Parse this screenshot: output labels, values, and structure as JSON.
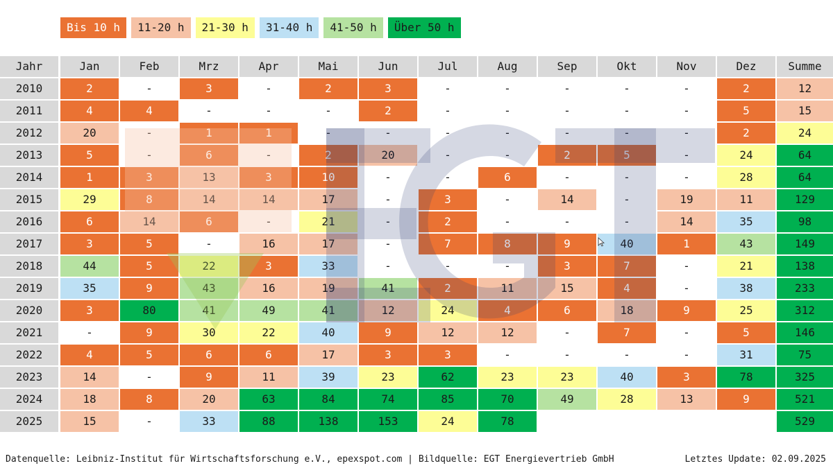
{
  "legend": [
    {
      "label": "Bis 10 h",
      "color": "#ea7233",
      "text_color": "#ffffff"
    },
    {
      "label": "11-20 h",
      "color": "#f6c2a6",
      "text_color": "#1a1a1a"
    },
    {
      "label": "21-30 h",
      "color": "#fdfd96",
      "text_color": "#1a1a1a"
    },
    {
      "label": "31-40 h",
      "color": "#bde0f4",
      "text_color": "#1a1a1a"
    },
    {
      "label": "41-50 h",
      "color": "#b6e2a1",
      "text_color": "#1a1a1a"
    },
    {
      "label": "Über 50 h",
      "color": "#00b050",
      "text_color": "#1a1a1a"
    }
  ],
  "chart_data": {
    "type": "table",
    "header": [
      "Jahr",
      "Jan",
      "Feb",
      "Mrz",
      "Apr",
      "Mai",
      "Jun",
      "Jul",
      "Aug",
      "Sep",
      "Okt",
      "Nov",
      "Dez",
      "Summe"
    ],
    "rows": [
      {
        "year": "2010",
        "values": [
          "2",
          "-",
          "3",
          "-",
          "2",
          "3",
          "-",
          "-",
          "-",
          "-",
          "-",
          "2",
          "12"
        ]
      },
      {
        "year": "2011",
        "values": [
          "4",
          "4",
          "-",
          "-",
          "-",
          "2",
          "-",
          "-",
          "-",
          "-",
          "-",
          "5",
          "15"
        ]
      },
      {
        "year": "2012",
        "values": [
          "20",
          "-",
          "1",
          "1",
          "-",
          "-",
          "-",
          "-",
          "-",
          "-",
          "-",
          "2",
          "24"
        ]
      },
      {
        "year": "2013",
        "values": [
          "5",
          "-",
          "6",
          "-",
          "2",
          "20",
          "-",
          "-",
          "2",
          "5",
          "-",
          "24",
          "64"
        ]
      },
      {
        "year": "2014",
        "values": [
          "1",
          "3",
          "13",
          "3",
          "10",
          "-",
          "-",
          "6",
          "-",
          "-",
          "-",
          "28",
          "64"
        ]
      },
      {
        "year": "2015",
        "values": [
          "29",
          "8",
          "14",
          "14",
          "17",
          "-",
          "3",
          "-",
          "14",
          "-",
          "19",
          "11",
          "129"
        ]
      },
      {
        "year": "2016",
        "values": [
          "6",
          "14",
          "6",
          "-",
          "21",
          "-",
          "2",
          "-",
          "-",
          "-",
          "14",
          "35",
          "98"
        ]
      },
      {
        "year": "2017",
        "values": [
          "3",
          "5",
          "-",
          "16",
          "17",
          "-",
          "7",
          "8",
          "9",
          "40",
          "1",
          "43",
          "149"
        ]
      },
      {
        "year": "2018",
        "values": [
          "44",
          "5",
          "22",
          "3",
          "33",
          "-",
          "-",
          "-",
          "3",
          "7",
          "-",
          "21",
          "138"
        ]
      },
      {
        "year": "2019",
        "values": [
          "35",
          "9",
          "43",
          "16",
          "19",
          "41",
          "2",
          "11",
          "15",
          "4",
          "-",
          "38",
          "233"
        ]
      },
      {
        "year": "2020",
        "values": [
          "3",
          "80",
          "41",
          "49",
          "41",
          "12",
          "24",
          "4",
          "6",
          "18",
          "9",
          "25",
          "312"
        ]
      },
      {
        "year": "2021",
        "values": [
          "-",
          "9",
          "30",
          "22",
          "40",
          "9",
          "12",
          "12",
          "-",
          "7",
          "-",
          "5",
          "146"
        ]
      },
      {
        "year": "2022",
        "values": [
          "4",
          "5",
          "6",
          "6",
          "17",
          "3",
          "3",
          "-",
          "-",
          "-",
          "-",
          "31",
          "75"
        ]
      },
      {
        "year": "2023",
        "values": [
          "14",
          "-",
          "9",
          "11",
          "39",
          "23",
          "62",
          "23",
          "23",
          "40",
          "3",
          "78",
          "325"
        ]
      },
      {
        "year": "2024",
        "values": [
          "18",
          "8",
          "20",
          "63",
          "84",
          "74",
          "85",
          "70",
          "49",
          "28",
          "13",
          "9",
          "521"
        ]
      },
      {
        "year": "2025",
        "values": [
          "15",
          "-",
          "33",
          "88",
          "138",
          "153",
          "24",
          "78",
          "",
          "",
          "",
          "",
          "529"
        ]
      }
    ]
  },
  "watermark": {
    "text": "EGT",
    "color": "#2e3e74"
  },
  "footer": {
    "source": "Datenquelle: Leibniz-Institut für Wirtschaftsforschung e.V., epexspot.com | Bildquelle: EGT Energievertrieb GmbH",
    "update": "Letztes Update: 02.09.2025"
  }
}
